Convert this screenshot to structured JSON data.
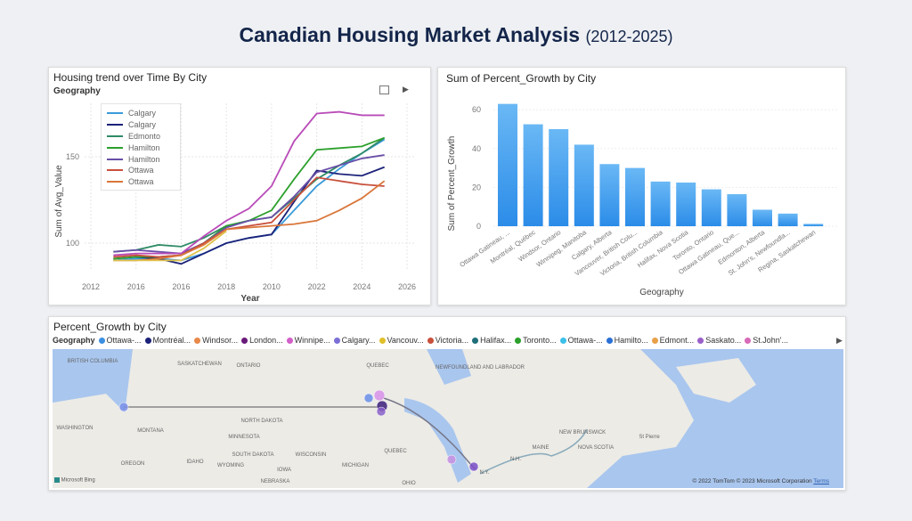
{
  "header": {
    "title": "Canadian Housing Market Analysis",
    "subtitle": "(2012-2025)"
  },
  "chart_data": [
    {
      "type": "line",
      "title": "Housing trend over Time By City",
      "legend_title": "Geography",
      "xlabel": "Year",
      "ylabel": "Sum of Avg_Value",
      "x_tick_labels": [
        "2012",
        "2016",
        "2016",
        "2018",
        "2010",
        "2022",
        "2024",
        "2026"
      ],
      "y_ticks": [
        100,
        150
      ],
      "xlim": [
        2012,
        2026
      ],
      "ylim": [
        80,
        185
      ],
      "grid": true,
      "legend_placement": "top-left",
      "x": [
        2013,
        2014,
        2015,
        2016,
        2017,
        2018,
        2019,
        2020,
        2021,
        2022,
        2023,
        2024,
        2025
      ],
      "series": [
        {
          "name": "Calgary",
          "color": "#3a9bd9",
          "values": [
            90,
            91,
            91,
            90,
            94,
            100,
            103,
            105,
            119,
            133,
            143,
            152,
            160
          ]
        },
        {
          "name": "Calgary",
          "color": "#1c2279",
          "values": [
            91,
            92,
            91,
            88,
            94,
            100,
            103,
            105,
            124,
            142,
            140,
            139,
            144
          ]
        },
        {
          "name": "Edmonto",
          "color": "#2e8b66",
          "values": [
            95,
            96,
            99,
            98,
            103,
            110,
            113,
            115,
            126,
            137,
            145,
            152,
            161
          ]
        },
        {
          "name": "Hamilton",
          "color": "#2ca02c",
          "values": [
            91,
            92,
            92,
            93,
            100,
            110,
            113,
            119,
            137,
            154,
            155,
            156,
            161
          ]
        },
        {
          "name": "Hamilton",
          "color": "#6a4fa8",
          "values": [
            95,
            96,
            95,
            94,
            100,
            109,
            113,
            115,
            127,
            141,
            145,
            149,
            151
          ]
        },
        {
          "name": "Ottawa",
          "color": "#c8503c",
          "values": [
            92,
            93,
            92,
            93,
            100,
            108,
            110,
            112,
            125,
            138,
            136,
            134,
            133
          ]
        },
        {
          "name": "Ottawa",
          "color": "#d9763a",
          "values": [
            90,
            90,
            91,
            93,
            99,
            108,
            109,
            110,
            111,
            113,
            119,
            126,
            136
          ]
        },
        {
          "name": "",
          "color": "#b94bb8",
          "values": [
            93,
            94,
            94,
            94,
            104,
            113,
            120,
            133,
            159,
            175,
            176,
            174,
            174
          ]
        },
        {
          "name": "",
          "color": "#e0c24a",
          "values": [
            90,
            90,
            90,
            90,
            97,
            107,
            null,
            null,
            null,
            null,
            null,
            null,
            null
          ]
        }
      ]
    },
    {
      "type": "bar",
      "title": "Sum of Percent_Growth by City",
      "xlabel": "Geography",
      "ylabel": "Sum of Percent_Growth",
      "ylim": [
        0,
        65
      ],
      "y_ticks": [
        0,
        20,
        40,
        60
      ],
      "grid": true,
      "categories": [
        "Ottawa Gatineau, ...",
        "Montréal, Québec",
        "Windsor, Ontario",
        "Winnipeg, Manitoba",
        "Calgary, Alberta",
        "Vancouver, British Colu...",
        "Victoria, British Columbia",
        "Halifax, Nova Scotia",
        "Toronto, Ontario",
        "Ottawa Gatineau, Que...",
        "Edmonton, Alberta",
        "St. John's, Newfoundla...",
        "Regina, Saskatchewan"
      ],
      "values": [
        63,
        52.5,
        50,
        42,
        32,
        30,
        23,
        22.5,
        19,
        16.5,
        8.5,
        6.5,
        1.2
      ],
      "color": "#2b8ce8"
    }
  ],
  "map": {
    "title": "Percent_Growth by City",
    "legend_title": "Geography",
    "legend": [
      {
        "label": "Ottawa-...",
        "color": "#3c8fe0"
      },
      {
        "label": "Montréal...",
        "color": "#1c2279"
      },
      {
        "label": "Windsor...",
        "color": "#e8894a"
      },
      {
        "label": "London...",
        "color": "#6a1b7a"
      },
      {
        "label": "Winnipe...",
        "color": "#d35fc8"
      },
      {
        "label": "Calgary...",
        "color": "#7b6fd6"
      },
      {
        "label": "Vancouv...",
        "color": "#e0c02a"
      },
      {
        "label": "Victoria...",
        "color": "#c8503c"
      },
      {
        "label": "Halifax...",
        "color": "#1f6f7a"
      },
      {
        "label": "Toronto...",
        "color": "#2ca02c"
      },
      {
        "label": "Ottawa-...",
        "color": "#3cc0e8"
      },
      {
        "label": "Hamilto...",
        "color": "#2a6fd6"
      },
      {
        "label": "Edmont...",
        "color": "#e8a04a"
      },
      {
        "label": "Saskato...",
        "color": "#9a5fc8"
      },
      {
        "label": "St.John'...",
        "color": "#d86ab8"
      }
    ],
    "place_labels": [
      "BRITISH COLUMBIA",
      "SASKATCHEWAN",
      "ONTARIO",
      "QUEBEC",
      "NEWFOUNDLAND AND LABRADOR",
      "WASHINGTON",
      "MONTANA",
      "NORTH DAKOTA",
      "MINNESOTA",
      "SOUTH DAKOTA",
      "WISCONSIN",
      "OREGON",
      "IDAHO",
      "WYOMING",
      "IOWA",
      "NEBRASKA",
      "MICHIGAN",
      "OHIO",
      "QUEBEC",
      "MAINE",
      "NOVA SCOTIA",
      "NEW BRUNSWICK",
      "N.H.",
      "N.Y.",
      "St Pierre"
    ],
    "logo": "Microsoft Bing",
    "attribution": "© 2022 TomTom © 2023 Microsoft Corporation",
    "terms": "Terms"
  }
}
